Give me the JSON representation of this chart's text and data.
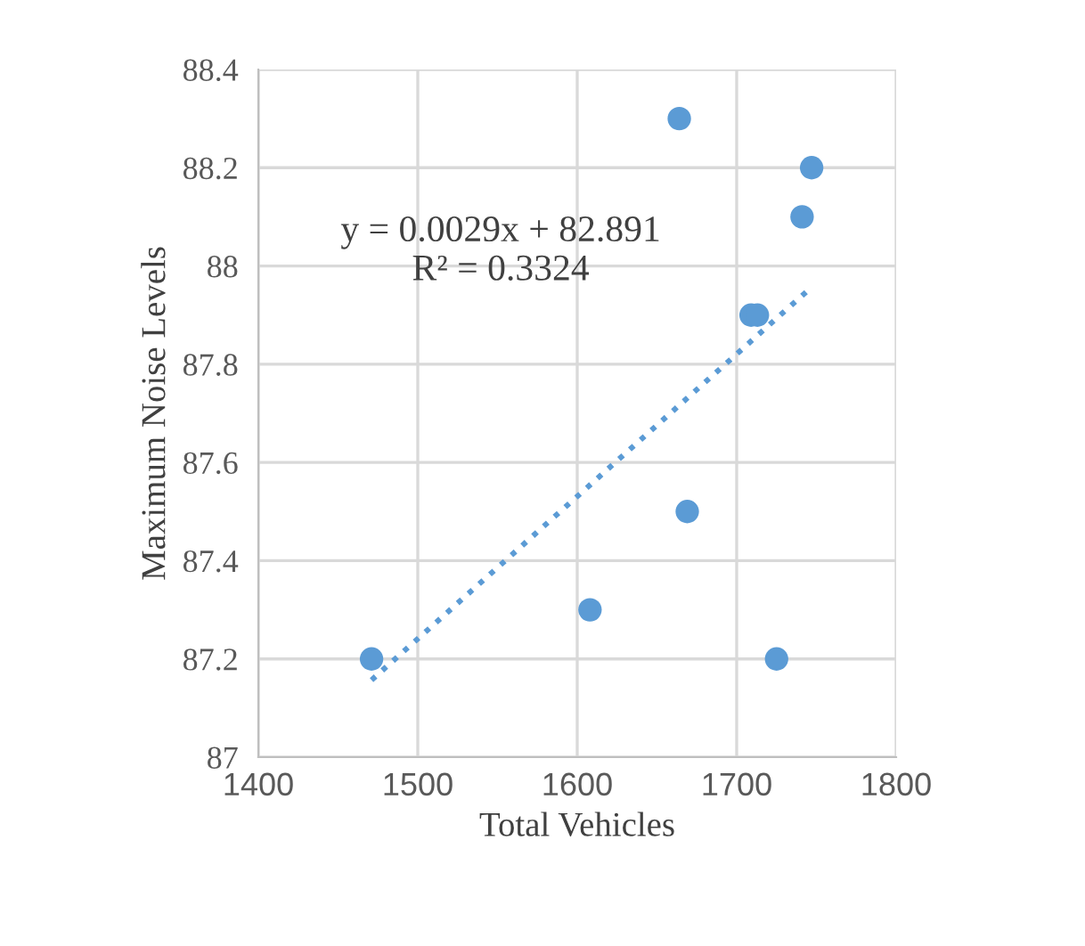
{
  "chart_data": {
    "type": "scatter",
    "xlabel": "Total Vehicles",
    "ylabel": "Maximum Noise Levels",
    "xlim": [
      1400,
      1800
    ],
    "xticks": [
      1400,
      1500,
      1600,
      1700,
      1800
    ],
    "ylim": [
      87,
      88.4
    ],
    "yticks": [
      87,
      {
        "value": 87.2,
        "label": "87.2"
      },
      {
        "value": 87.4,
        "label": "87.4"
      },
      {
        "value": 87.6,
        "label": "87.6"
      },
      {
        "value": 87.8,
        "label": "87.8"
      },
      88,
      {
        "value": 88.2,
        "label": "88.2"
      },
      {
        "value": 88.4,
        "label": "88.4"
      }
    ],
    "grid": true,
    "series": [
      {
        "color": "#5b9bd5",
        "marker": "circle",
        "x": [
          1471,
          1608,
          1664,
          1669,
          1709,
          1713,
          1725,
          1741,
          1747
        ],
        "values": [
          87.2,
          87.3,
          88.3,
          87.5,
          87.9,
          87.9,
          87.2,
          88.1,
          88.2
        ]
      },
      {
        "type": "line",
        "color": "#5b9bd5",
        "line_style": "dotted",
        "x": [
          1471,
          1747
        ],
        "values": [
          87.157,
          87.957
        ]
      }
    ],
    "annotations": [
      "y = 0.0029x + 82.891\nR² = 0.3324"
    ]
  }
}
